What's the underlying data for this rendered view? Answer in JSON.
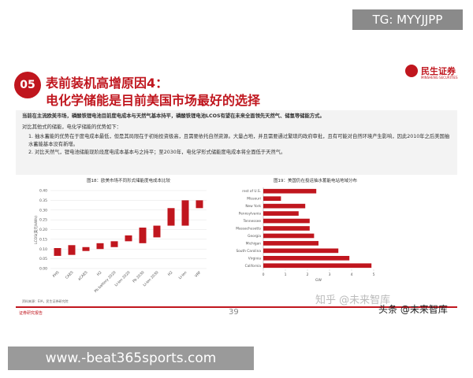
{
  "watermark_top": "TG: MYYJJPP",
  "watermark_bottom": "www.-beat365sports.com",
  "watermark_zhihu": "知乎 @未来智库",
  "watermark_toutiao": "头条 @未来智库",
  "header": {
    "badge": "05",
    "title_line1": "表前装机高增原因4：",
    "title_line2": "电化学储能是目前美国市场最好的选择",
    "logo": "民生证券",
    "logo_sub": "MINSHENG SECURITIES"
  },
  "body": {
    "intro": "当前在主流欧美市场，磷酸铁锂电池目前度电成本与天然气基本持平，磷酸铁锂电池LCOS有望在未来全面领先天然气、储氢等储能方式。",
    "lead": "对比其他式的储能，电化学储能的优势如下：",
    "points": [
      "1. 抽水蓄能的优势在于度电成本最低，但是其局限在于初始投资极高，且需要依托自然资源。大量占地，并且需要通过繁琐的政府审批，且有可能对自然环境产生影响，因此2010年之后美国抽水蓄能基本没有新增。",
      "2. 对比天然气，锂电池储能现阶段度电成本基本与之持平；至2030年，电化学形式储能度电成本将全面低于天然气。"
    ]
  },
  "chart_data": [
    {
      "type": "floating_bar",
      "title": "图18：欧美市场不同形式储能度电成本比较",
      "y_label": "LCOS(美元/kWh)",
      "categories": [
        "PHS",
        "CAES",
        "aCAES",
        "H2",
        "Pb battery 2020",
        "Li-ion 2020",
        "Pb 2030",
        "Li-ion 2030",
        "H2",
        "Li-ion",
        "VRF"
      ],
      "low": [
        0.065,
        0.07,
        0.09,
        0.1,
        0.11,
        0.14,
        0.13,
        0.16,
        0.22,
        0.22,
        0.31
      ],
      "high": [
        0.105,
        0.12,
        0.11,
        0.13,
        0.14,
        0.17,
        0.21,
        0.22,
        0.31,
        0.35,
        0.35
      ],
      "color": "#c0161e",
      "ylim": [
        0,
        0.4
      ],
      "yticks": [
        {
          "value": 0,
          "label": "0.00"
        },
        0.05,
        {
          "value": 0.1,
          "label": "0.10"
        },
        0.15,
        {
          "value": 0.2,
          "label": "0.20"
        },
        0.25,
        {
          "value": 0.3,
          "label": "0.30"
        },
        0.35,
        {
          "value": 0.4,
          "label": "0.40"
        }
      ],
      "grid": true
    },
    {
      "type": "hbar",
      "title": "图19：美国仍在投运抽水蓄能电站地域分布",
      "x_label": "GW",
      "categories": [
        "rest of U.S.",
        "Missouri",
        "New York",
        "Pennsylvania",
        "Tennessee",
        "Massachusetts",
        "Georgia",
        "Michigan",
        "South Carolina",
        "Virginia",
        "California"
      ],
      "values": [
        2.4,
        0.8,
        1.9,
        1.6,
        2.1,
        2.1,
        2.3,
        2.5,
        3.4,
        3.9,
        4.9
      ],
      "color": "#c0161e",
      "xlim": [
        0,
        5
      ],
      "xticks": [
        0,
        1,
        2,
        3,
        4,
        5
      ],
      "grid": false
    }
  ],
  "footer": {
    "source": "资料来源：EIA，民生证券研究院",
    "page": "39",
    "left": "证券研究报告"
  }
}
